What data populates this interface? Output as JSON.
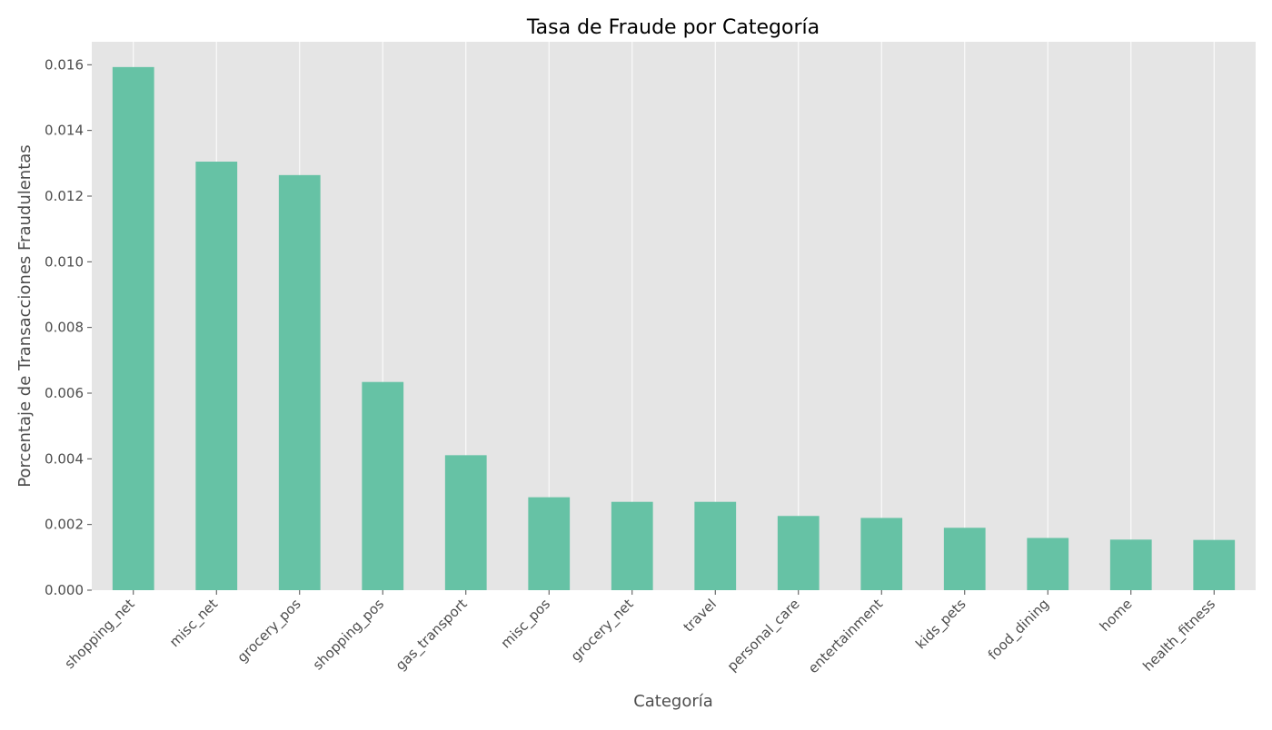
{
  "chart_data": {
    "type": "bar",
    "title": "Tasa de Fraude por Categoría",
    "xlabel": "Categoría",
    "ylabel": "Porcentaje de Transacciones Fraudulentas",
    "categories": [
      "shopping_net",
      "misc_net",
      "grocery_pos",
      "shopping_pos",
      "gas_transport",
      "misc_pos",
      "grocery_net",
      "travel",
      "personal_care",
      "entertainment",
      "kids_pets",
      "food_dining",
      "home",
      "health_fitness"
    ],
    "values": [
      0.01593,
      0.01305,
      0.01264,
      0.00634,
      0.00411,
      0.00283,
      0.00269,
      0.00269,
      0.00226,
      0.0022,
      0.0019,
      0.00159,
      0.00154,
      0.00153
    ],
    "ylim": [
      0,
      0.0167
    ],
    "yticks": [
      "0.000",
      "0.002",
      "0.004",
      "0.006",
      "0.008",
      "0.010",
      "0.012",
      "0.014",
      "0.016"
    ],
    "grid": true,
    "colors": {
      "bar": "#66c2a5",
      "plot_background": "#e5e5e5",
      "grid": "#ffffff",
      "tick_text": "#4d4d4d"
    }
  }
}
